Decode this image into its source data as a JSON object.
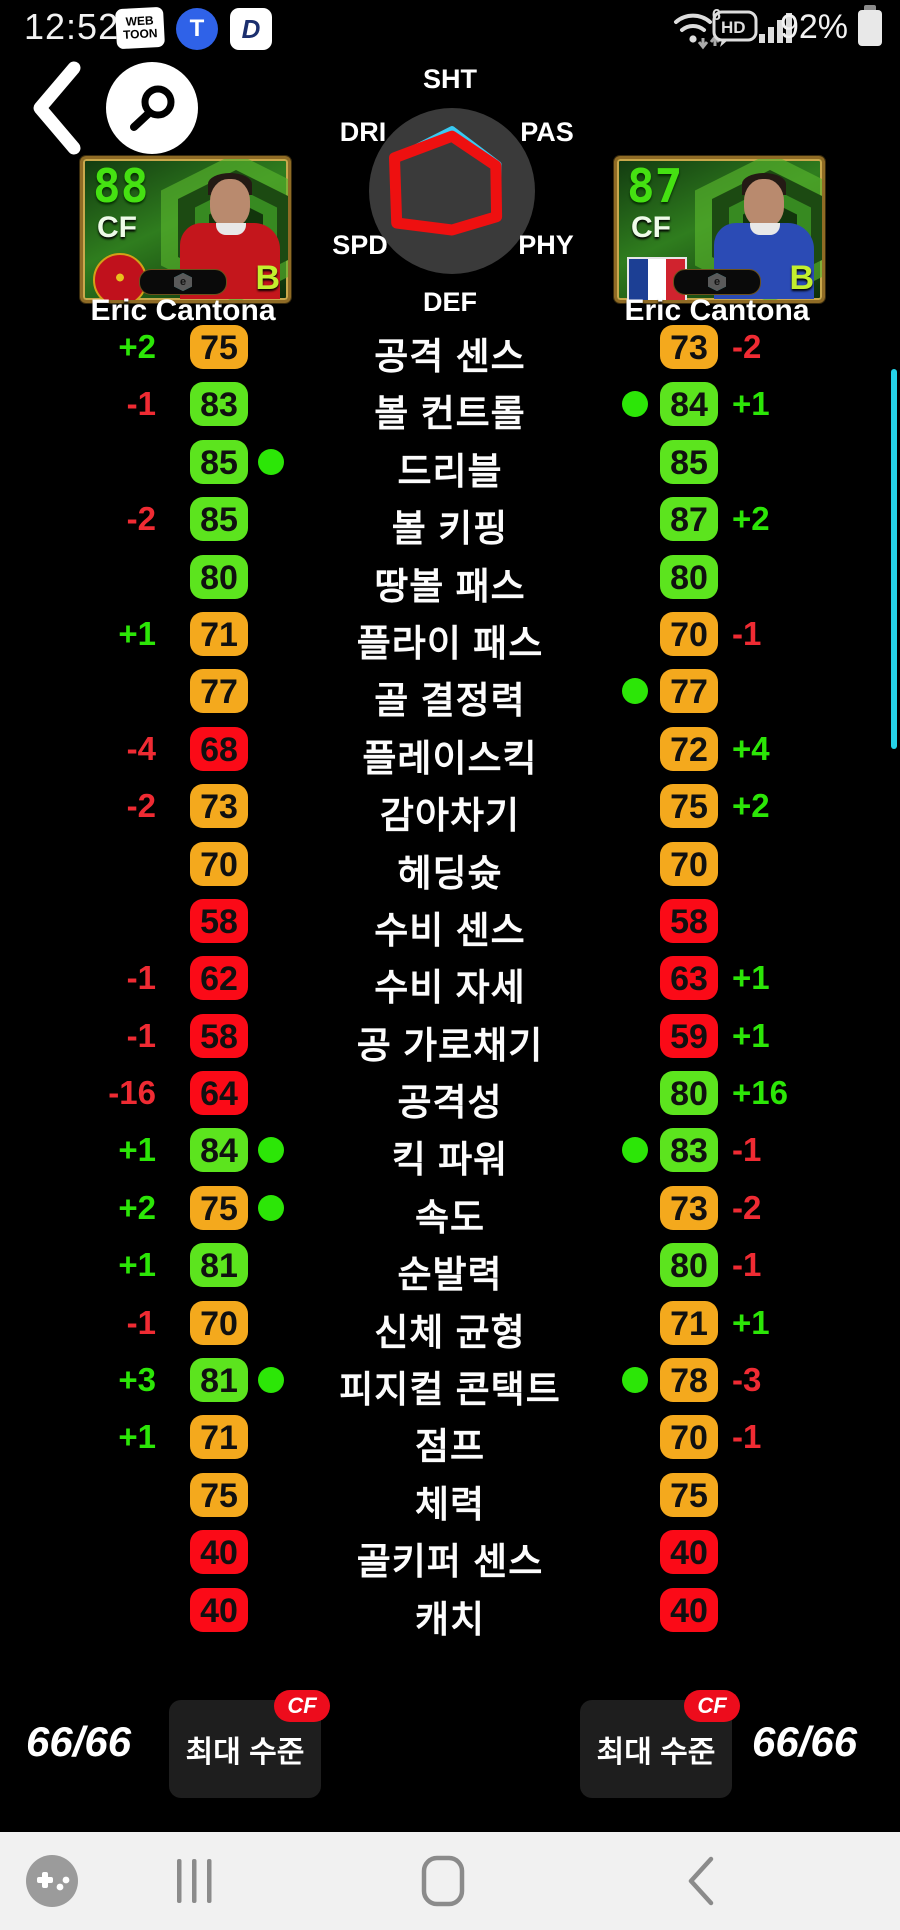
{
  "status_bar": {
    "time": "12:52",
    "webtoon_label": "WEB TOON",
    "tmap_label": "T",
    "d_app_label": "D",
    "wifi_generation": "6",
    "hd_label": "HD",
    "battery_percent": "92%"
  },
  "radar": {
    "labels": {
      "top": "SHT",
      "top_right": "PAS",
      "bottom_right": "PHY",
      "bottom": "DEF",
      "bottom_left": "SPD",
      "top_left": "DRI"
    },
    "axes": [
      "SHT",
      "PAS",
      "PHY",
      "DEF",
      "SPD",
      "DRI"
    ],
    "series": [
      {
        "name": "player-right",
        "color": "#38c9f2",
        "stroke": 7,
        "values": [
          0.74,
          0.64,
          0.63,
          0.48,
          0.78,
          0.79
        ]
      },
      {
        "name": "player-left",
        "color": "#ee1010",
        "stroke": 11,
        "values": [
          0.66,
          0.61,
          0.62,
          0.47,
          0.77,
          0.8
        ]
      }
    ]
  },
  "players": [
    {
      "rating": "88",
      "position": "CF",
      "name": "Eric Cantona",
      "grade": "B",
      "team": "Manchester United",
      "shirt_color": "#c4161c",
      "efootball_logo": "e"
    },
    {
      "rating": "87",
      "position": "CF",
      "name": "Eric Cantona",
      "grade": "B",
      "team": "France",
      "shirt_color": "#2b4bb5",
      "efootball_logo": "e",
      "flag_colors": [
        "#1c3f94",
        "#ffffff",
        "#d0232e"
      ]
    }
  ],
  "stats": [
    {
      "label": "공격 센스",
      "left": {
        "diff": "+2",
        "value": "75",
        "tier": "orange",
        "dot": false
      },
      "right": {
        "dot": false,
        "value": "73",
        "tier": "orange",
        "diff": "-2"
      }
    },
    {
      "label": "볼 컨트롤",
      "left": {
        "diff": "-1",
        "value": "83",
        "tier": "green",
        "dot": false
      },
      "right": {
        "dot": true,
        "value": "84",
        "tier": "green",
        "diff": "+1"
      }
    },
    {
      "label": "드리블",
      "left": {
        "diff": "",
        "value": "85",
        "tier": "green",
        "dot": true
      },
      "right": {
        "dot": false,
        "value": "85",
        "tier": "green",
        "diff": ""
      }
    },
    {
      "label": "볼 키핑",
      "left": {
        "diff": "-2",
        "value": "85",
        "tier": "green",
        "dot": false
      },
      "right": {
        "dot": false,
        "value": "87",
        "tier": "green",
        "diff": "+2"
      }
    },
    {
      "label": "땅볼 패스",
      "left": {
        "diff": "",
        "value": "80",
        "tier": "green",
        "dot": false
      },
      "right": {
        "dot": false,
        "value": "80",
        "tier": "green",
        "diff": ""
      }
    },
    {
      "label": "플라이 패스",
      "left": {
        "diff": "+1",
        "value": "71",
        "tier": "orange",
        "dot": false
      },
      "right": {
        "dot": false,
        "value": "70",
        "tier": "orange",
        "diff": "-1"
      }
    },
    {
      "label": "골 결정력",
      "left": {
        "diff": "",
        "value": "77",
        "tier": "orange",
        "dot": false
      },
      "right": {
        "dot": true,
        "value": "77",
        "tier": "orange",
        "diff": ""
      }
    },
    {
      "label": "플레이스킥",
      "left": {
        "diff": "-4",
        "value": "68",
        "tier": "red",
        "dot": false
      },
      "right": {
        "dot": false,
        "value": "72",
        "tier": "orange",
        "diff": "+4"
      }
    },
    {
      "label": "감아차기",
      "left": {
        "diff": "-2",
        "value": "73",
        "tier": "orange",
        "dot": false
      },
      "right": {
        "dot": false,
        "value": "75",
        "tier": "orange",
        "diff": "+2"
      }
    },
    {
      "label": "헤딩슛",
      "left": {
        "diff": "",
        "value": "70",
        "tier": "orange",
        "dot": false
      },
      "right": {
        "dot": false,
        "value": "70",
        "tier": "orange",
        "diff": ""
      }
    },
    {
      "label": "수비 센스",
      "left": {
        "diff": "",
        "value": "58",
        "tier": "red",
        "dot": false
      },
      "right": {
        "dot": false,
        "value": "58",
        "tier": "red",
        "diff": ""
      }
    },
    {
      "label": "수비 자세",
      "left": {
        "diff": "-1",
        "value": "62",
        "tier": "red",
        "dot": false
      },
      "right": {
        "dot": false,
        "value": "63",
        "tier": "red",
        "diff": "+1"
      }
    },
    {
      "label": "공 가로채기",
      "left": {
        "diff": "-1",
        "value": "58",
        "tier": "red",
        "dot": false
      },
      "right": {
        "dot": false,
        "value": "59",
        "tier": "red",
        "diff": "+1"
      }
    },
    {
      "label": "공격성",
      "left": {
        "diff": "-16",
        "value": "64",
        "tier": "red",
        "dot": false
      },
      "right": {
        "dot": false,
        "value": "80",
        "tier": "green",
        "diff": "+16"
      }
    },
    {
      "label": "킥 파워",
      "left": {
        "diff": "+1",
        "value": "84",
        "tier": "green",
        "dot": true
      },
      "right": {
        "dot": true,
        "value": "83",
        "tier": "green",
        "diff": "-1"
      }
    },
    {
      "label": "속도",
      "left": {
        "diff": "+2",
        "value": "75",
        "tier": "orange",
        "dot": true
      },
      "right": {
        "dot": false,
        "value": "73",
        "tier": "orange",
        "diff": "-2"
      }
    },
    {
      "label": "순발력",
      "left": {
        "diff": "+1",
        "value": "81",
        "tier": "green",
        "dot": false
      },
      "right": {
        "dot": false,
        "value": "80",
        "tier": "green",
        "diff": "-1"
      }
    },
    {
      "label": "신체 균형",
      "left": {
        "diff": "-1",
        "value": "70",
        "tier": "orange",
        "dot": false
      },
      "right": {
        "dot": false,
        "value": "71",
        "tier": "orange",
        "diff": "+1"
      }
    },
    {
      "label": "피지컬 콘택트",
      "left": {
        "diff": "+3",
        "value": "81",
        "tier": "green",
        "dot": true
      },
      "right": {
        "dot": true,
        "value": "78",
        "tier": "orange",
        "diff": "-3"
      }
    },
    {
      "label": "점프",
      "left": {
        "diff": "+1",
        "value": "71",
        "tier": "orange",
        "dot": false
      },
      "right": {
        "dot": false,
        "value": "70",
        "tier": "orange",
        "diff": "-1"
      }
    },
    {
      "label": "체력",
      "left": {
        "diff": "",
        "value": "75",
        "tier": "orange",
        "dot": false
      },
      "right": {
        "dot": false,
        "value": "75",
        "tier": "orange",
        "diff": ""
      }
    },
    {
      "label": "골키퍼 센스",
      "left": {
        "diff": "",
        "value": "40",
        "tier": "red",
        "dot": false
      },
      "right": {
        "dot": false,
        "value": "40",
        "tier": "red",
        "diff": ""
      }
    },
    {
      "label": "캐치",
      "left": {
        "diff": "",
        "value": "40",
        "tier": "red",
        "dot": false
      },
      "right": {
        "dot": false,
        "value": "40",
        "tier": "red",
        "diff": ""
      }
    }
  ],
  "footer": {
    "left_progress": "66/66",
    "right_progress": "66/66",
    "max_level_label": "최대 수준",
    "position_badge": "CF"
  },
  "colors": {
    "tier_green": "#5ce41e",
    "tier_orange": "#f4a91d",
    "tier_red": "#fb0a17",
    "diff_plus": "#2ce607",
    "diff_minus": "#ef2b33",
    "scrollbar": "#25d2e8",
    "accent_green": "#45e112",
    "cf_pill": "#ed0c1c"
  }
}
